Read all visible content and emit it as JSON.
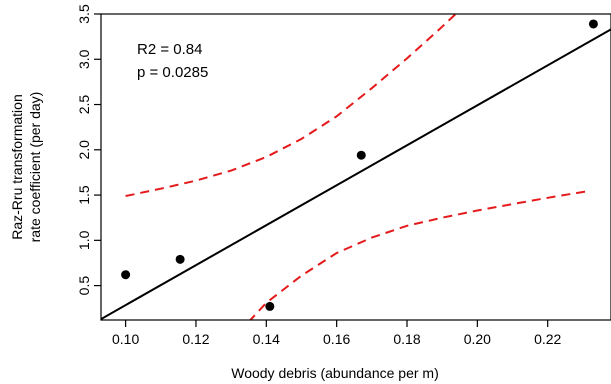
{
  "chart_data": {
    "type": "scatter",
    "xlabel": "Woody debris (abundance per m)",
    "ylabel_lines": [
      "Raz-Rru transformation",
      "rate coefficient (per day)"
    ],
    "xlim": [
      0.093,
      0.238
    ],
    "ylim": [
      0.12,
      3.5
    ],
    "x_ticks": [
      0.1,
      0.12,
      0.14,
      0.16,
      0.18,
      0.2,
      0.22
    ],
    "x_tick_labels": [
      "0.10",
      "0.12",
      "0.14",
      "0.16",
      "0.18",
      "0.20",
      "0.22"
    ],
    "y_ticks": [
      0.5,
      1.0,
      1.5,
      2.0,
      2.5,
      3.0,
      3.5
    ],
    "y_tick_labels": [
      "0.5",
      "1.0",
      "1.5",
      "2.0",
      "2.5",
      "3.0",
      "3.5"
    ],
    "points": [
      {
        "x": 0.1,
        "y": 0.62
      },
      {
        "x": 0.1155,
        "y": 0.79
      },
      {
        "x": 0.141,
        "y": 0.27
      },
      {
        "x": 0.167,
        "y": 1.94
      },
      {
        "x": 0.233,
        "y": 3.39
      }
    ],
    "regression_line": {
      "color": "#000000",
      "x": [
        0.093,
        0.238
      ],
      "y": [
        0.13,
        3.33
      ]
    },
    "confidence_upper": {
      "color": "#e41a1c",
      "x": [
        0.1,
        0.11,
        0.12,
        0.13,
        0.14,
        0.15,
        0.16,
        0.17,
        0.18,
        0.19,
        0.196
      ],
      "y": [
        1.49,
        1.57,
        1.66,
        1.77,
        1.92,
        2.12,
        2.37,
        2.68,
        3.01,
        3.36,
        3.58
      ]
    },
    "confidence_lower": {
      "color": "#e41a1c",
      "x": [
        0.135,
        0.14,
        0.15,
        0.16,
        0.17,
        0.18,
        0.19,
        0.2,
        0.21,
        0.22,
        0.231
      ],
      "y": [
        0.1,
        0.31,
        0.61,
        0.86,
        1.03,
        1.16,
        1.25,
        1.33,
        1.4,
        1.47,
        1.54
      ]
    },
    "annotations": [
      "R2 = 0.84",
      "p = 0.0285"
    ]
  }
}
